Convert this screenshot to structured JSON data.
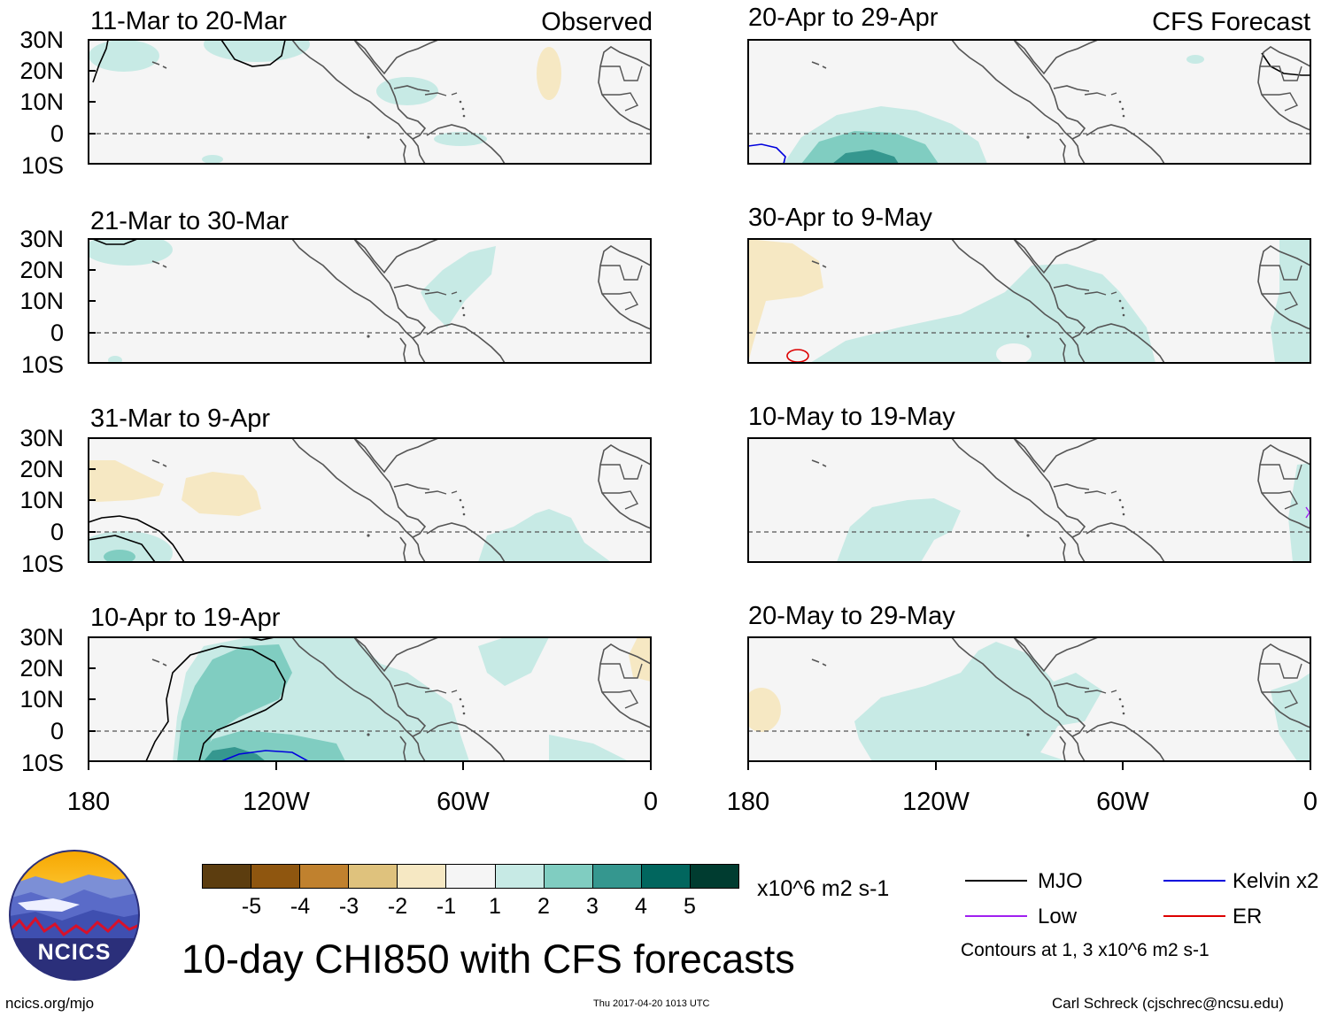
{
  "observed_label": "Observed",
  "forecast_label": "CFS Forecast",
  "lat_labels": [
    "30N",
    "20N",
    "10N",
    "0",
    "10S"
  ],
  "lon_labels": [
    "180",
    "120W",
    "60W",
    "0"
  ],
  "panels_left": [
    "11-Mar to 20-Mar",
    "21-Mar to 30-Mar",
    "31-Mar to 9-Apr",
    "10-Apr to 19-Apr"
  ],
  "panels_right": [
    "20-Apr to 29-Apr",
    "30-Apr to 9-May",
    "10-May to 19-May",
    "20-May to 29-May"
  ],
  "colorbar": {
    "ticks": [
      "-5",
      "-4",
      "-3",
      "-2",
      "-1",
      "1",
      "2",
      "3",
      "4",
      "5"
    ],
    "colors": [
      "#5c3d0f",
      "#8f560f",
      "#c0812e",
      "#dfc27d",
      "#f6e8c3",
      "#f5f5f5",
      "#c7eae5",
      "#80cdc1",
      "#35978f",
      "#01665e",
      "#003c30"
    ],
    "units": "x10^6 m2 s-1"
  },
  "main_title": "10-day CHI850 with CFS forecasts",
  "logo_text": "NCICS",
  "website": "ncics.org/mjo",
  "timestamp": "Thu 2017-04-20 1013 UTC",
  "author": "Carl Schreck (cjschrec@ncsu.edu)",
  "legend": {
    "items": [
      {
        "label": "MJO",
        "color": "#000000"
      },
      {
        "label": "Kelvin x2",
        "color": "#0000dd"
      },
      {
        "label": "Low",
        "color": "#a020f0"
      },
      {
        "label": "ER",
        "color": "#dd0000"
      }
    ],
    "note": "Contours at 1, 3 x10^6 m2 s-1"
  }
}
